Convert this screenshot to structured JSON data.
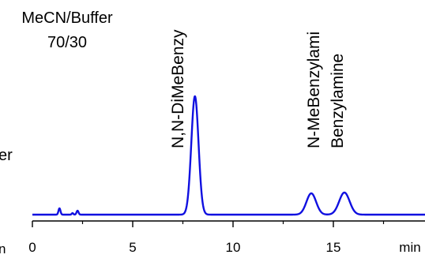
{
  "chart_data": {
    "type": "line",
    "title": "",
    "xlabel": "",
    "ylabel": "",
    "x_unit_label": "min",
    "xlim": [
      0,
      20
    ],
    "xticks": [
      0,
      5,
      10,
      15
    ],
    "tick_labels": [
      "0",
      "5",
      "10",
      "15"
    ],
    "grid": false,
    "legend": "none",
    "line_color": "#1010e0",
    "conditions": {
      "line1": "MeCN/Buffer",
      "line2": "70/30"
    },
    "left_fragments": [
      "er",
      "n"
    ],
    "peak_labels": [
      "N,N-DiMeBenzy",
      "N-MeBenzylami",
      "Benzylamine"
    ],
    "baseline": 2,
    "peaks": [
      {
        "rt": 1.35,
        "height": 8,
        "width": 0.05
      },
      {
        "rt": 2.0,
        "height": 2,
        "width": 0.04
      },
      {
        "rt": 2.25,
        "height": 5,
        "width": 0.05
      },
      {
        "rt": 8.1,
        "height": 150,
        "width": 0.18
      },
      {
        "rt": 13.9,
        "height": 27,
        "width": 0.24
      },
      {
        "rt": 15.55,
        "height": 28,
        "width": 0.26
      }
    ]
  }
}
